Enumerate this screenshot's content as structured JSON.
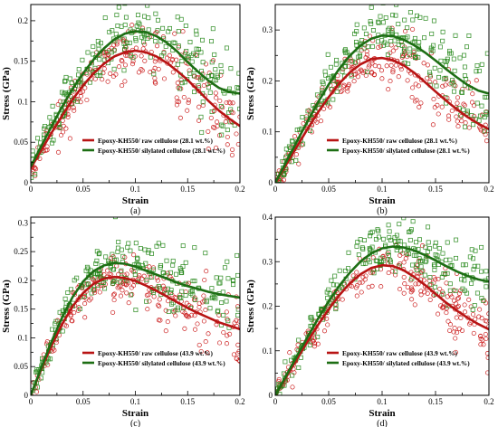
{
  "figure": {
    "background": "#ffffff",
    "raw_color": "#cc2020",
    "silylated_color": "#2a8a1e",
    "raw_fit_color": "#b81414",
    "silylated_fit_color": "#1d6e14"
  },
  "chart_data": [
    {
      "panel": "(a)",
      "type": "scatter",
      "xlabel": "Strain",
      "ylabel": "Stress (GPa)",
      "xlim": [
        0,
        0.2
      ],
      "ylim": [
        0,
        0.22
      ],
      "xticks": [
        0,
        0.05,
        0.1,
        0.15,
        0.2
      ],
      "xtick_labels": [
        "0",
        "0.05",
        "0.1",
        "0.15",
        "0.2"
      ],
      "yticks": [
        0,
        0.05,
        0.1,
        0.15,
        0.2
      ],
      "ytick_labels": [
        "0",
        "0.05",
        "0.1",
        "0.15",
        "0.2"
      ],
      "legend_position": "bottom-right",
      "series": [
        {
          "name": "Epoxy-KH550/ raw cellulose (28.1 wt.%)",
          "color": "#cc2020",
          "marker": "circle",
          "fit_x": [
            0,
            0.01,
            0.02,
            0.03,
            0.04,
            0.05,
            0.06,
            0.07,
            0.08,
            0.09,
            0.1,
            0.11,
            0.12,
            0.13,
            0.14,
            0.15,
            0.16,
            0.17,
            0.18,
            0.19,
            0.2
          ],
          "fit_y": [
            0.018,
            0.04,
            0.062,
            0.083,
            0.103,
            0.12,
            0.135,
            0.147,
            0.156,
            0.161,
            0.163,
            0.161,
            0.156,
            0.148,
            0.138,
            0.127,
            0.114,
            0.101,
            0.089,
            0.079,
            0.07
          ],
          "scatter_spread": 0.02
        },
        {
          "name": "Epoxy-KH550/ silylated cellulose (28.1 wt.%)",
          "color": "#2a8a1e",
          "marker": "square",
          "fit_x": [
            0,
            0.01,
            0.02,
            0.03,
            0.04,
            0.05,
            0.06,
            0.07,
            0.08,
            0.09,
            0.1,
            0.11,
            0.12,
            0.13,
            0.14,
            0.15,
            0.16,
            0.17,
            0.18,
            0.19,
            0.2
          ],
          "fit_y": [
            0.02,
            0.045,
            0.07,
            0.094,
            0.116,
            0.135,
            0.152,
            0.166,
            0.177,
            0.184,
            0.187,
            0.186,
            0.181,
            0.173,
            0.162,
            0.149,
            0.137,
            0.126,
            0.117,
            0.112,
            0.11
          ],
          "scatter_spread": 0.022
        }
      ]
    },
    {
      "panel": "(b)",
      "type": "scatter",
      "xlabel": "Strain",
      "ylabel": "Stress (GPa)",
      "xlim": [
        0,
        0.2
      ],
      "ylim": [
        0,
        0.35
      ],
      "xticks": [
        0,
        0.05,
        0.1,
        0.15,
        0.2
      ],
      "xtick_labels": [
        "0",
        "0.05",
        "0.1",
        "0.15",
        "0.2"
      ],
      "yticks": [
        0,
        0.1,
        0.2,
        0.3
      ],
      "ytick_labels": [
        "0",
        "0.1",
        "0.2",
        "0.3"
      ],
      "legend_position": "bottom-right",
      "series": [
        {
          "name": "Epoxy-KH550/ raw cellulose (28.1 wt.%)",
          "color": "#cc2020",
          "marker": "circle",
          "fit_x": [
            0,
            0.01,
            0.02,
            0.03,
            0.04,
            0.05,
            0.06,
            0.07,
            0.08,
            0.09,
            0.1,
            0.11,
            0.12,
            0.13,
            0.14,
            0.15,
            0.16,
            0.17,
            0.18,
            0.19,
            0.2
          ],
          "fit_y": [
            0.0,
            0.035,
            0.07,
            0.105,
            0.138,
            0.168,
            0.195,
            0.217,
            0.233,
            0.243,
            0.245,
            0.241,
            0.231,
            0.216,
            0.198,
            0.179,
            0.161,
            0.144,
            0.129,
            0.116,
            0.105
          ],
          "scatter_spread": 0.03
        },
        {
          "name": "Epoxy-KH550/ silylated cellulose (28.1 wt.%)",
          "color": "#2a8a1e",
          "marker": "square",
          "fit_x": [
            0,
            0.01,
            0.02,
            0.03,
            0.04,
            0.05,
            0.06,
            0.07,
            0.08,
            0.09,
            0.1,
            0.11,
            0.12,
            0.13,
            0.14,
            0.15,
            0.16,
            0.17,
            0.18,
            0.19,
            0.2
          ],
          "fit_y": [
            0.0,
            0.04,
            0.08,
            0.12,
            0.158,
            0.193,
            0.224,
            0.25,
            0.27,
            0.283,
            0.289,
            0.288,
            0.281,
            0.27,
            0.256,
            0.24,
            0.223,
            0.207,
            0.192,
            0.181,
            0.175
          ],
          "scatter_spread": 0.032
        }
      ]
    },
    {
      "panel": "(c)",
      "type": "scatter",
      "xlabel": "Strain",
      "ylabel": "Stress (GPa)",
      "xlim": [
        0,
        0.2
      ],
      "ylim": [
        0,
        0.31
      ],
      "xticks": [
        0,
        0.05,
        0.1,
        0.15,
        0.2
      ],
      "xtick_labels": [
        "0",
        "0.05",
        "0.1",
        "0.15",
        "0.2"
      ],
      "yticks": [
        0,
        0.05,
        0.1,
        0.15,
        0.2,
        0.25,
        0.3
      ],
      "ytick_labels": [
        "0",
        "0.05",
        "0.1",
        "0.15",
        "0.2",
        "0.25",
        "0.3"
      ],
      "legend_position": "bottom-right",
      "series": [
        {
          "name": "Epoxy-KH550/ raw cellulose (43.9 wt.%)",
          "color": "#cc2020",
          "marker": "circle",
          "fit_x": [
            0,
            0.01,
            0.02,
            0.03,
            0.04,
            0.05,
            0.06,
            0.07,
            0.08,
            0.09,
            0.1,
            0.11,
            0.12,
            0.13,
            0.14,
            0.15,
            0.16,
            0.17,
            0.18,
            0.19,
            0.2
          ],
          "fit_y": [
            0.0,
            0.045,
            0.087,
            0.124,
            0.155,
            0.178,
            0.194,
            0.203,
            0.206,
            0.204,
            0.199,
            0.191,
            0.182,
            0.172,
            0.162,
            0.152,
            0.143,
            0.135,
            0.127,
            0.121,
            0.115
          ],
          "scatter_spread": 0.025
        },
        {
          "name": "Epoxy-KH550/ silylated cellulose (43.9 wt.%)",
          "color": "#2a8a1e",
          "marker": "square",
          "fit_x": [
            0,
            0.01,
            0.02,
            0.03,
            0.04,
            0.05,
            0.06,
            0.07,
            0.08,
            0.09,
            0.1,
            0.11,
            0.12,
            0.13,
            0.14,
            0.15,
            0.16,
            0.17,
            0.18,
            0.19,
            0.2
          ],
          "fit_y": [
            0.0,
            0.048,
            0.094,
            0.136,
            0.171,
            0.198,
            0.216,
            0.226,
            0.23,
            0.229,
            0.224,
            0.217,
            0.21,
            0.203,
            0.196,
            0.19,
            0.185,
            0.18,
            0.176,
            0.173,
            0.17
          ],
          "scatter_spread": 0.03
        }
      ]
    },
    {
      "panel": "(d)",
      "type": "scatter",
      "xlabel": "Strain",
      "ylabel": "Stress (GPa)",
      "xlim": [
        0,
        0.2
      ],
      "ylim": [
        0,
        0.4
      ],
      "xticks": [
        0,
        0.05,
        0.1,
        0.15,
        0.2
      ],
      "xtick_labels": [
        "0",
        "0.05",
        "0.1",
        "0.15",
        "0.2"
      ],
      "yticks": [
        0,
        0.1,
        0.2,
        0.3,
        0.4
      ],
      "ytick_labels": [
        "0",
        "0.1",
        "0.2",
        "0.3",
        "0.4"
      ],
      "legend_position": "bottom-right",
      "series": [
        {
          "name": "Epoxy-KH550/ raw cellulose (43.9 wt.%)",
          "color": "#cc2020",
          "marker": "circle",
          "fit_x": [
            0,
            0.01,
            0.02,
            0.03,
            0.04,
            0.05,
            0.06,
            0.07,
            0.08,
            0.09,
            0.1,
            0.11,
            0.12,
            0.13,
            0.14,
            0.15,
            0.16,
            0.17,
            0.18,
            0.19,
            0.2
          ],
          "fit_y": [
            0.0,
            0.04,
            0.08,
            0.12,
            0.158,
            0.193,
            0.225,
            0.252,
            0.272,
            0.286,
            0.292,
            0.29,
            0.281,
            0.266,
            0.248,
            0.228,
            0.208,
            0.19,
            0.174,
            0.16,
            0.148
          ],
          "scatter_spread": 0.03
        },
        {
          "name": "Epoxy-KH550/ silylated cellulose (43.9 wt.%)",
          "color": "#2a8a1e",
          "marker": "square",
          "fit_x": [
            0,
            0.01,
            0.02,
            0.03,
            0.04,
            0.05,
            0.06,
            0.07,
            0.08,
            0.09,
            0.1,
            0.11,
            0.12,
            0.13,
            0.14,
            0.15,
            0.16,
            0.17,
            0.18,
            0.19,
            0.2
          ],
          "fit_y": [
            0.0,
            0.043,
            0.087,
            0.13,
            0.172,
            0.211,
            0.246,
            0.276,
            0.301,
            0.319,
            0.33,
            0.334,
            0.332,
            0.325,
            0.315,
            0.303,
            0.29,
            0.278,
            0.268,
            0.26,
            0.255
          ],
          "scatter_spread": 0.03
        }
      ]
    }
  ]
}
